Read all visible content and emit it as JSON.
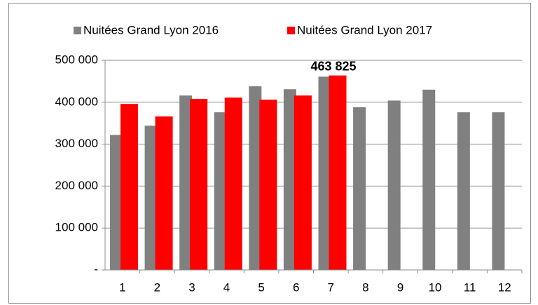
{
  "chart_data": {
    "type": "bar",
    "categories": [
      "1",
      "2",
      "3",
      "4",
      "5",
      "6",
      "7",
      "8",
      "9",
      "10",
      "11",
      "12"
    ],
    "series": [
      {
        "name": "Nuitées Grand Lyon 2016",
        "color": "#808080",
        "values": [
          322000,
          344000,
          416000,
          376000,
          438000,
          431000,
          461000,
          388000,
          404000,
          430000,
          376000,
          376000
        ]
      },
      {
        "name": "Nuitées Grand Lyon 2017",
        "color": "#ff0000",
        "values": [
          396000,
          366000,
          408000,
          411000,
          406000,
          416000,
          463825,
          null,
          null,
          null,
          null,
          null
        ],
        "value_labels": [
          null,
          null,
          null,
          null,
          null,
          null,
          "463 825",
          null,
          null,
          null,
          null,
          null
        ]
      }
    ],
    "ylim": [
      0,
      500000
    ],
    "yticks": [
      {
        "value": 0,
        "label": "-"
      },
      {
        "value": 100000,
        "label": "100 000"
      },
      {
        "value": 200000,
        "label": "200 000"
      },
      {
        "value": 300000,
        "label": "300 000"
      },
      {
        "value": 400000,
        "label": "400 000"
      },
      {
        "value": 500000,
        "label": "500 000"
      }
    ],
    "grid": true,
    "legend": "top"
  }
}
